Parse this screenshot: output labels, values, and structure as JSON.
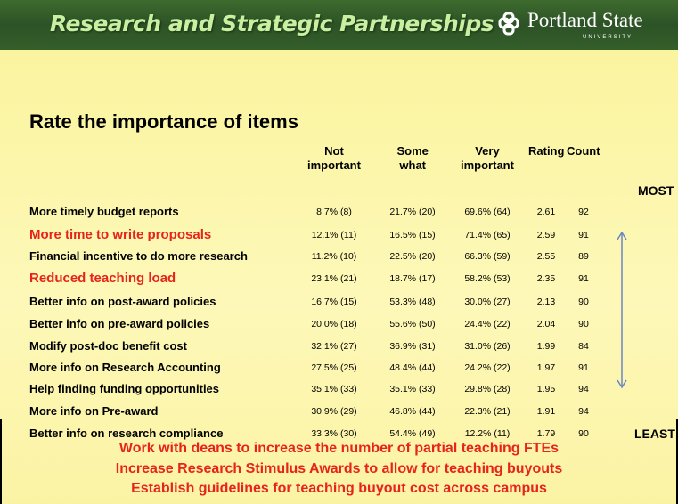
{
  "header": {
    "title": "Research and Strategic Partnerships",
    "logo": "Portland State",
    "logo_sub": "UNIVERSITY"
  },
  "slide_title": "Rate the importance of items",
  "table": {
    "columns": [
      "Not important",
      "Some what",
      "Very important",
      "Rating",
      "Count"
    ],
    "top_label": "MOST",
    "bottom_label": "LEAST",
    "rows": [
      {
        "item": "More timely budget reports",
        "color": "#000000",
        "values": [
          "8.7% (8)",
          "21.7% (20)",
          "69.6% (64)",
          2.61,
          92
        ]
      },
      {
        "item": "More time to write proposals",
        "color": "#e8231b",
        "values": [
          "12.1% (11)",
          "16.5% (15)",
          "71.4% (65)",
          2.59,
          91
        ]
      },
      {
        "item": "Financial incentive to do more research",
        "color": "#000000",
        "values": [
          "11.2% (10)",
          "22.5% (20)",
          "66.3% (59)",
          2.55,
          89
        ]
      },
      {
        "item": "Reduced teaching load",
        "color": "#e8231b",
        "values": [
          "23.1% (21)",
          "18.7% (17)",
          "58.2% (53)",
          2.35,
          91
        ]
      },
      {
        "item": "Better info on post-award policies",
        "color": "#000000",
        "values": [
          "16.7% (15)",
          "53.3% (48)",
          "30.0% (27)",
          2.13,
          90
        ]
      },
      {
        "item": "Better info on pre-award policies",
        "color": "#000000",
        "values": [
          "20.0% (18)",
          "55.6% (50)",
          "24.4% (22)",
          2.04,
          90
        ]
      },
      {
        "item": "Modify post-doc benefit cost",
        "color": "#000000",
        "values": [
          "32.1% (27)",
          "36.9% (31)",
          "31.0% (26)",
          1.99,
          84
        ]
      },
      {
        "item": "More info on Research Accounting",
        "color": "#000000",
        "values": [
          "27.5% (25)",
          "48.4% (44)",
          "24.2% (22)",
          1.97,
          91
        ]
      },
      {
        "item": "Help finding funding opportunities",
        "color": "#000000",
        "values": [
          "35.1% (33)",
          "35.1% (33)",
          "29.8% (28)",
          1.95,
          94
        ]
      },
      {
        "item": "More info on Pre-award",
        "color": "#000000",
        "values": [
          "30.9% (29)",
          "46.8% (44)",
          "22.3% (21)",
          1.91,
          94
        ]
      },
      {
        "item": "Better info on research compliance",
        "color": "#000000",
        "values": [
          "33.3% (30)",
          "54.4% (49)",
          "12.2% (11)",
          1.79,
          90
        ]
      }
    ]
  },
  "recommendations": [
    "Work with deans to increase the number of partial teaching FTEs",
    "Increase Research Stimulus Awards to allow for teaching buyouts",
    "Establish guidelines for teaching buyout cost across campus"
  ]
}
